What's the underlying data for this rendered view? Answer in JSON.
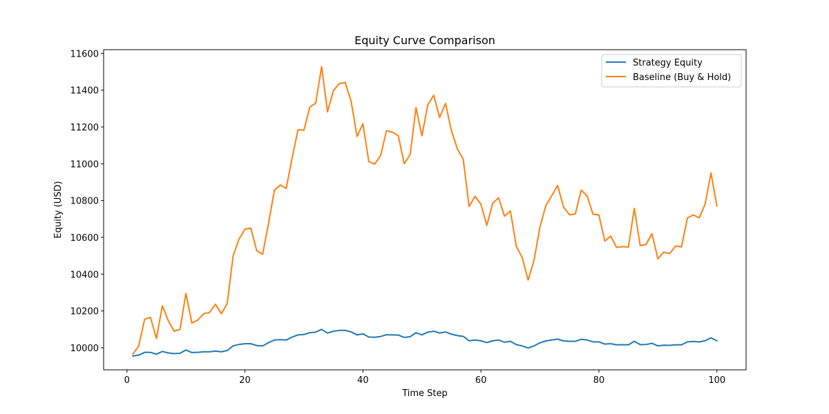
{
  "chart_data": {
    "type": "line",
    "title": "Equity Curve Comparison",
    "xlabel": "Time Step",
    "ylabel": "Equity (USD)",
    "xlim": [
      -3.95,
      104.95
    ],
    "ylim": [
      9880,
      11620
    ],
    "x_ticks": [
      0,
      20,
      40,
      60,
      80,
      100
    ],
    "y_ticks": [
      10000,
      10200,
      10400,
      10600,
      10800,
      11000,
      11200,
      11400,
      11600
    ],
    "x_tick_labels": [
      "0",
      "20",
      "40",
      "60",
      "80",
      "100"
    ],
    "y_tick_labels": [
      "10000",
      "10200",
      "10400",
      "10600",
      "10800",
      "11000",
      "11200",
      "11400",
      "11600"
    ],
    "grid": false,
    "legend_position": "top-right",
    "x": [
      1,
      2,
      3,
      4,
      5,
      6,
      7,
      8,
      9,
      10,
      11,
      12,
      13,
      14,
      15,
      16,
      17,
      18,
      19,
      20,
      21,
      22,
      23,
      24,
      25,
      26,
      27,
      28,
      29,
      30,
      31,
      32,
      33,
      34,
      35,
      36,
      37,
      38,
      39,
      40,
      41,
      42,
      43,
      44,
      45,
      46,
      47,
      48,
      49,
      50,
      51,
      52,
      53,
      54,
      55,
      56,
      57,
      58,
      59,
      60,
      61,
      62,
      63,
      64,
      65,
      66,
      67,
      68,
      69,
      70,
      71,
      72,
      73,
      74,
      75,
      76,
      77,
      78,
      79,
      80,
      81,
      82,
      83,
      84,
      85,
      86,
      87,
      88,
      89,
      90,
      91,
      92,
      93,
      94,
      95,
      96,
      97,
      98,
      99,
      100
    ],
    "series": [
      {
        "name": "Strategy Equity",
        "color": "#1f77b4",
        "values": [
          9955,
          9960,
          9975,
          9975,
          9965,
          9980,
          9972,
          9968,
          9970,
          9988,
          9974,
          9975,
          9978,
          9978,
          9982,
          9978,
          9985,
          10010,
          10018,
          10022,
          10022,
          10012,
          10010,
          10028,
          10042,
          10044,
          10042,
          10058,
          10070,
          10072,
          10082,
          10085,
          10100,
          10080,
          10090,
          10094,
          10095,
          10086,
          10070,
          10076,
          10058,
          10057,
          10061,
          10071,
          10070,
          10069,
          10056,
          10060,
          10082,
          10070,
          10085,
          10090,
          10080,
          10086,
          10074,
          10066,
          10062,
          10038,
          10042,
          10038,
          10028,
          10038,
          10042,
          10030,
          10035,
          10017,
          10010,
          9999,
          10010,
          10027,
          10037,
          10042,
          10047,
          10037,
          10035,
          10035,
          10046,
          10042,
          10032,
          10032,
          10020,
          10022,
          10016,
          10017,
          10016,
          10035,
          10017,
          10018,
          10024,
          10010,
          10014,
          10013,
          10016,
          10016,
          10032,
          10034,
          10032,
          10038,
          10054,
          10038
        ]
      },
      {
        "name": "Baseline (Buy & Hold)",
        "color": "#ff7f0e",
        "values": [
          9965,
          10010,
          10155,
          10165,
          10050,
          10228,
          10148,
          10090,
          10100,
          10295,
          10135,
          10150,
          10185,
          10192,
          10237,
          10185,
          10240,
          10500,
          10590,
          10645,
          10650,
          10528,
          10508,
          10675,
          10856,
          10885,
          10866,
          11032,
          11185,
          11182,
          11308,
          11330,
          11528,
          11282,
          11398,
          11435,
          11442,
          11340,
          11148,
          11217,
          11012,
          10998,
          11045,
          11180,
          11172,
          11152,
          11000,
          11050,
          11305,
          11152,
          11320,
          11372,
          11252,
          11328,
          11180,
          11082,
          11025,
          10768,
          10823,
          10780,
          10665,
          10785,
          10815,
          10715,
          10743,
          10552,
          10490,
          10368,
          10475,
          10655,
          10772,
          10826,
          10882,
          10765,
          10723,
          10727,
          10857,
          10825,
          10726,
          10722,
          10580,
          10607,
          10545,
          10550,
          10547,
          10758,
          10555,
          10562,
          10620,
          10483,
          10520,
          10512,
          10553,
          10548,
          10705,
          10722,
          10706,
          10780,
          10950,
          10770
        ]
      }
    ]
  }
}
